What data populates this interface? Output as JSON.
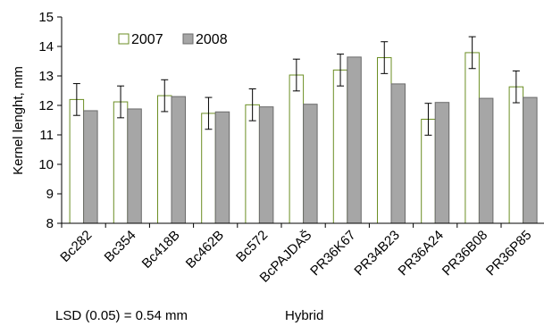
{
  "chart_data": {
    "type": "bar",
    "title": "",
    "xlabel": "Hybrid",
    "ylabel": "Kernel lenght, mm",
    "ylim": [
      8,
      15
    ],
    "yticks": [
      "8",
      "9",
      "10",
      "11",
      "12",
      "13",
      "14",
      "15"
    ],
    "categories": [
      "Bc282",
      "Bc354",
      "Bc418B",
      "Bc462B",
      "Bc572",
      "BcPAJDAŠ",
      "PR36K67",
      "PR34B23",
      "PR36A24",
      "PR36B08",
      "PR36P85"
    ],
    "series": [
      {
        "name": "2007",
        "color": "#ffffff",
        "values": [
          12.2,
          12.12,
          12.33,
          11.73,
          12.02,
          13.03,
          13.2,
          13.62,
          11.53,
          13.79,
          12.63
        ],
        "error": [
          0.54,
          0.54,
          0.54,
          0.54,
          0.54,
          0.54,
          0.54,
          0.54,
          0.54,
          0.54,
          0.54
        ]
      },
      {
        "name": "2008",
        "color": "#a6a6a6",
        "values": [
          11.82,
          11.88,
          12.3,
          11.78,
          11.95,
          12.04,
          13.64,
          12.73,
          12.1,
          12.24,
          12.27
        ]
      }
    ],
    "legend": "top-left",
    "grid": false,
    "annotation": "LSD (0.05) = 0.54 mm"
  }
}
